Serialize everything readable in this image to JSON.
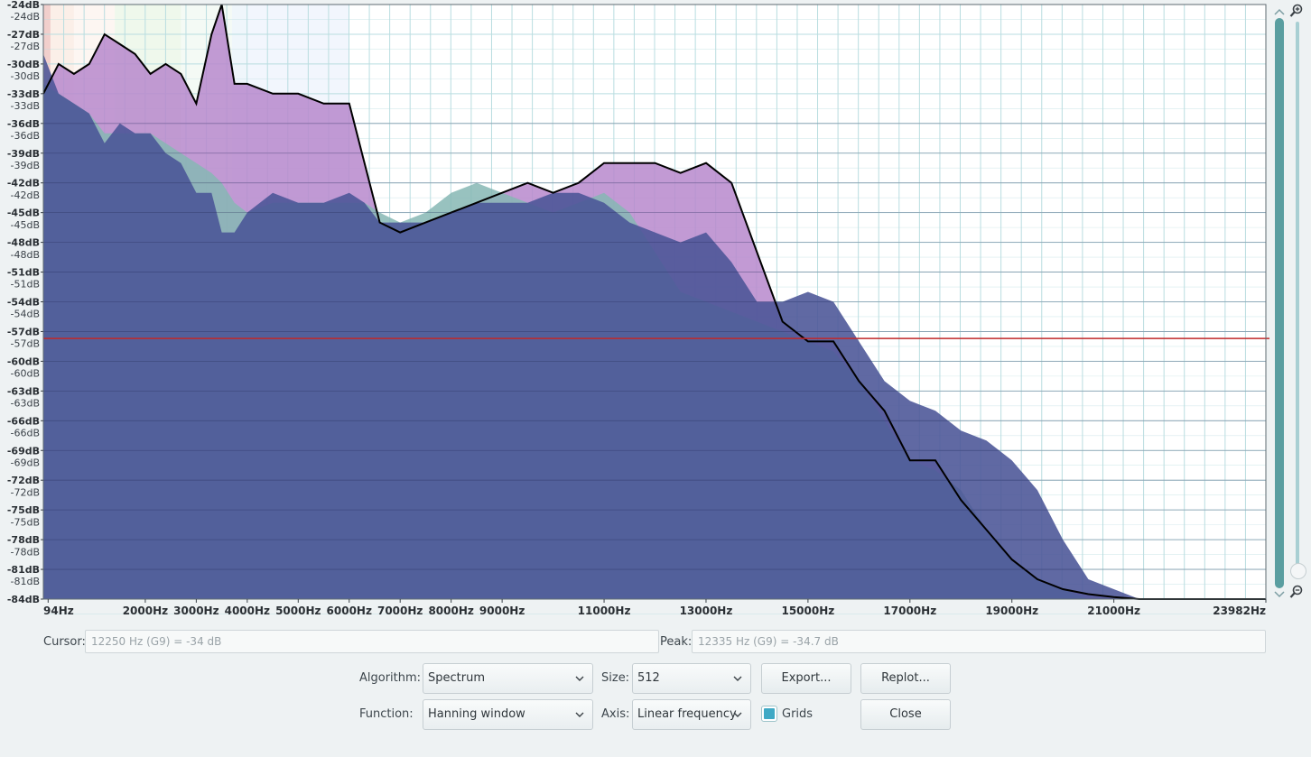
{
  "plot": {
    "y_labels_primary": [
      "-24dB",
      "-27dB",
      "-30dB",
      "-33dB",
      "-36dB",
      "-39dB",
      "-42dB",
      "-45dB",
      "-48dB",
      "-51dB",
      "-54dB",
      "-57dB",
      "-60dB",
      "-63dB",
      "-66dB",
      "-69dB",
      "-72dB",
      "-75dB",
      "-78dB",
      "-81dB",
      "-84dB"
    ],
    "y_labels_secondary": [
      "-24dB",
      "-27dB",
      "-30dB",
      "-33dB",
      "-36dB",
      "-39dB",
      "-42dB",
      "-45dB",
      "-48dB",
      "-51dB",
      "-54dB",
      "-57dB",
      "-60dB",
      "-63dB",
      "-66dB",
      "-69dB",
      "-72dB",
      "-75dB",
      "-78dB",
      "-81dB"
    ],
    "x_labels": [
      "94Hz",
      "2000Hz",
      "3000Hz",
      "4000Hz",
      "5000Hz",
      "6000Hz",
      "7000Hz",
      "8000Hz",
      "9000Hz",
      "11000Hz",
      "13000Hz",
      "15000Hz",
      "17000Hz",
      "19000Hz",
      "21000Hz",
      "23982Hz"
    ],
    "x_label_freqs": [
      94,
      2000,
      3000,
      4000,
      5000,
      6000,
      7000,
      8000,
      9000,
      11000,
      13000,
      15000,
      17000,
      19000,
      21000,
      23982
    ],
    "cursor_line_db": -57.7,
    "colors": {
      "background": "#ffffff",
      "grid": "#b9dde0",
      "dark_fill": "#4a5496",
      "violet_fill": "#b788cc",
      "teal_fill": "#86b7b4",
      "outline": "#000000",
      "cursor_line": "#c0282a",
      "scroll_thumb": "#5a9ea0"
    }
  },
  "chart_data": {
    "type": "area",
    "title": "",
    "xlabel": "",
    "ylabel": "",
    "xlim": [
      0,
      23982
    ],
    "ylim": [
      -84,
      -24
    ],
    "grid": true,
    "x": [
      0,
      300,
      600,
      900,
      1200,
      1500,
      1800,
      2100,
      2400,
      2700,
      3000,
      3300,
      3500,
      3750,
      4000,
      4500,
      5000,
      5500,
      6000,
      6300,
      6600,
      7000,
      7500,
      8000,
      8500,
      9000,
      9500,
      10000,
      10500,
      11000,
      11500,
      12000,
      12500,
      13000,
      13500,
      14000,
      14500,
      15000,
      15500,
      16000,
      16500,
      17000,
      17500,
      18000,
      18500,
      19000,
      19500,
      20000,
      20500,
      21000,
      21500,
      22000,
      22500,
      23000,
      23500,
      23982
    ],
    "series": [
      {
        "values": [
          -33,
          -30,
          -31,
          -30,
          -27,
          -28,
          -29,
          -31,
          -30,
          -31,
          -34,
          -27,
          -24,
          -32,
          -32,
          -33,
          -33,
          -34,
          -34,
          -40,
          -46,
          -47,
          -46,
          -45,
          -44,
          -43,
          -42,
          -43,
          -42,
          -40,
          -40,
          -40,
          -41,
          -40,
          -42,
          -49,
          -56,
          -58,
          -58,
          -62,
          -65,
          -70,
          -70,
          -74,
          -77,
          -80,
          -82,
          -83,
          -83.5,
          -83.8,
          -84,
          -84,
          -84,
          -84,
          -84,
          -84
        ]
      },
      {
        "values": [
          -29,
          -33,
          -34,
          -35,
          -38,
          -36,
          -37,
          -37,
          -39,
          -40,
          -43,
          -43,
          -47,
          -47,
          -45,
          -43,
          -44,
          -44,
          -43,
          -44,
          -46,
          -46,
          -46,
          -45,
          -44,
          -44,
          -44,
          -43,
          -43,
          -44,
          -46,
          -47,
          -48,
          -47,
          -50,
          -54,
          -54,
          -53,
          -54,
          -58,
          -62,
          -64,
          -65,
          -67,
          -68,
          -70,
          -73,
          -78,
          -82,
          -83,
          -84,
          -84,
          -84,
          -84,
          -84,
          -84
        ]
      },
      {
        "values": [
          -32,
          -33,
          -34,
          -35,
          -37,
          -37,
          -37,
          -37,
          -38,
          -39,
          -40,
          -41,
          -42,
          -44,
          -45,
          -44,
          -44,
          -44,
          -44,
          -44,
          -45,
          -46,
          -45,
          -43,
          -42,
          -43,
          -44,
          -45,
          -44,
          -43,
          -45,
          -49,
          -53,
          -54,
          -55,
          -56,
          -57,
          -58,
          -59,
          -62,
          -66,
          -70,
          -71,
          -73,
          -77,
          -80,
          -82,
          -83,
          -84,
          -84,
          -84,
          -84,
          -84,
          -84,
          -84,
          -84
        ]
      }
    ]
  },
  "scrollbar": {
    "zoom_in_icon": "zoom-in-icon",
    "zoom_out_icon": "zoom-out-icon"
  },
  "footer": {
    "cursor_label": "Cursor:",
    "cursor_value": "12250 Hz (G9) = -34 dB",
    "peak_label": "Peak:",
    "peak_value": "12335 Hz (G9) = -34.7 dB",
    "algorithm_label": "Algorithm:",
    "algorithm_value": "Spectrum",
    "size_label": "Size:",
    "size_value": "512",
    "function_label": "Function:",
    "function_value": "Hanning window",
    "axis_label": "Axis:",
    "axis_value": "Linear frequency",
    "export_label": "Export...",
    "replot_label": "Replot...",
    "grids_label": "Grids",
    "grids_checked": true,
    "close_label": "Close"
  }
}
